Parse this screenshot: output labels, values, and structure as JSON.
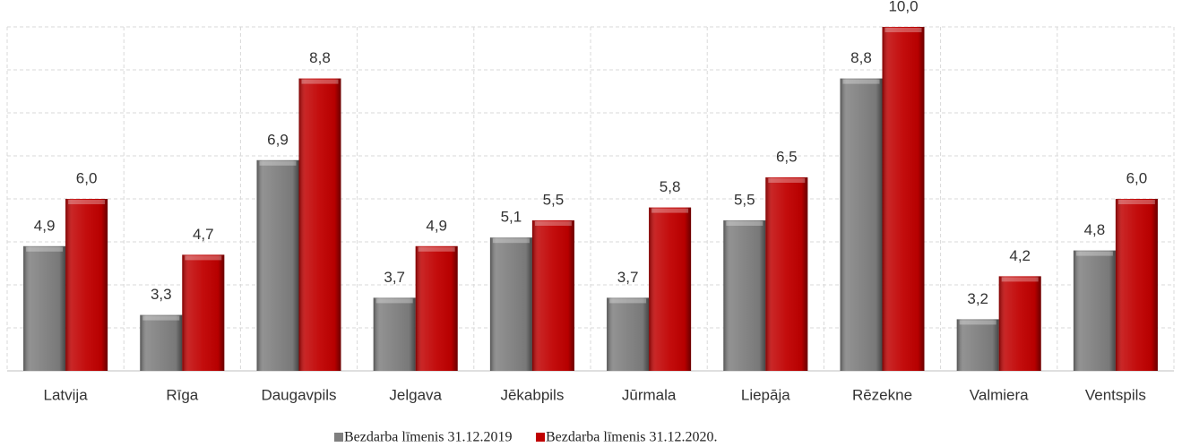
{
  "chart_data": {
    "type": "bar",
    "categories": [
      "Latvija",
      "Rīga",
      "Daugavpils",
      "Jelgava",
      "Jēkabpils",
      "Jūrmala",
      "Liepāja",
      "Rēzekne",
      "Valmiera",
      "Ventspils"
    ],
    "series": [
      {
        "name": "Bezdarba līmenis 31.12.2019",
        "color": "#7f7f7f",
        "values": [
          4.9,
          3.3,
          6.9,
          3.7,
          5.1,
          3.7,
          5.5,
          8.8,
          3.2,
          4.8
        ],
        "value_labels": [
          "4,9",
          "3,3",
          "6,9",
          "3,7",
          "5,1",
          "3,7",
          "5,5",
          "8,8",
          "3,2",
          "4,8"
        ]
      },
      {
        "name": "Bezdarba līmenis 31.12.2020.",
        "color": "#c00000",
        "values": [
          6.0,
          4.7,
          8.8,
          4.9,
          5.5,
          5.8,
          6.5,
          10.0,
          4.2,
          6.0
        ],
        "value_labels": [
          "6,0",
          "4,7",
          "8,8",
          "4,9",
          "5,5",
          "5,8",
          "6,5",
          "10,0",
          "4,2",
          "6,0"
        ]
      }
    ],
    "ylim": [
      2,
      10
    ],
    "yticks": [
      2,
      3,
      4,
      5,
      6,
      7,
      8,
      9,
      10
    ],
    "grid": true,
    "legend": "bottom"
  }
}
